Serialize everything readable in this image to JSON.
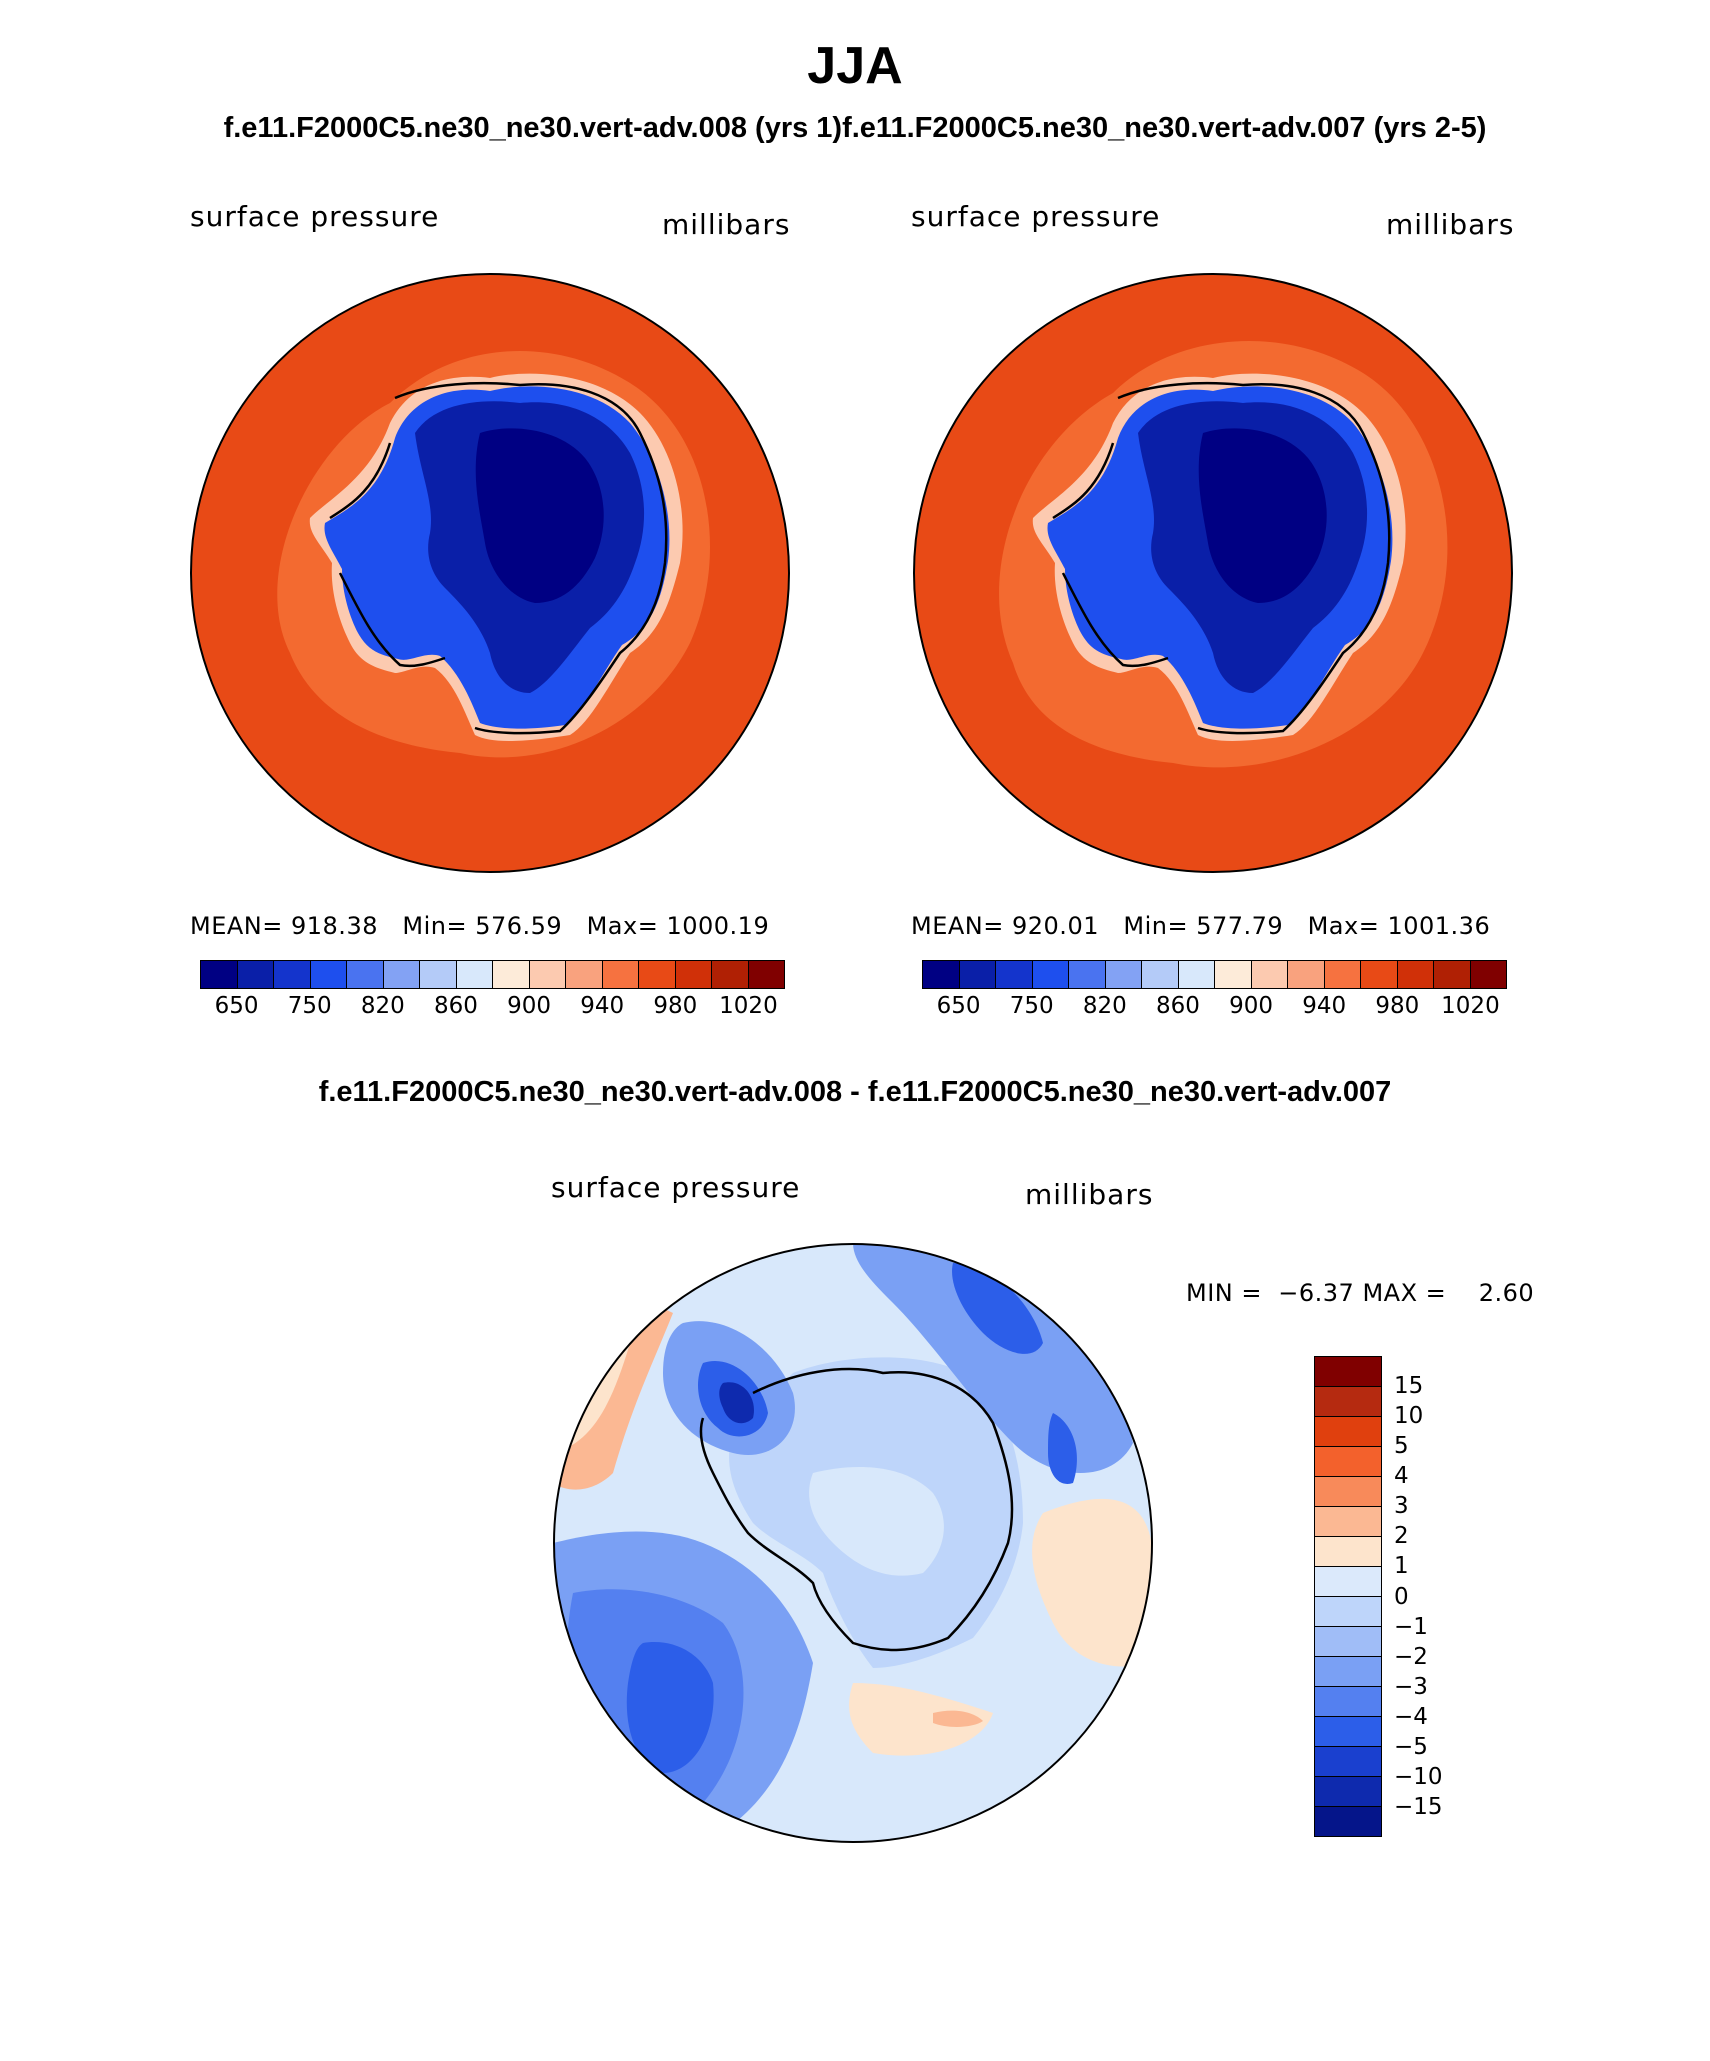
{
  "header": {
    "season": "JJA",
    "subtitle": "f.e11.F2000C5.ne30_ne30.vert-adv.008 (yrs 1)f.e11.F2000C5.ne30_ne30.vert-adv.007 (yrs 2-5)"
  },
  "panels": [
    {
      "variable": "surface pressure",
      "units": "millibars",
      "mean_label": "MEAN=",
      "mean": "918.38",
      "min_label": "Min=",
      "min": "576.59",
      "max_label": "Max=",
      "max": "1000.19"
    },
    {
      "variable": "surface pressure",
      "units": "millibars",
      "mean_label": "MEAN=",
      "mean": "920.01",
      "min_label": "Min=",
      "min": "577.79",
      "max_label": "Max=",
      "max": "1001.36"
    }
  ],
  "abs_colorbar": {
    "colors": [
      "#000083",
      "#0a1fa8",
      "#1434cc",
      "#1e4fee",
      "#4a73f0",
      "#83a2f4",
      "#b4cbf8",
      "#d8e8fb",
      "#fdebd9",
      "#fccab0",
      "#f9a27e",
      "#f67240",
      "#e84a16",
      "#d03008",
      "#b02004",
      "#800000"
    ],
    "labels": [
      "650",
      "750",
      "820",
      "860",
      "900",
      "940",
      "980",
      "1020"
    ]
  },
  "difference": {
    "title": "f.e11.F2000C5.ne30_ne30.vert-adv.008 - f.e11.F2000C5.ne30_ne30.vert-adv.007",
    "variable": "surface pressure",
    "units": "millibars",
    "min_label": "MIN =",
    "min": "−6.37",
    "max_label": "MAX =",
    "max": "2.60",
    "colorbar": {
      "colors": [
        "#800000",
        "#b52a10",
        "#e0400e",
        "#f3612c",
        "#f88a5a",
        "#fbb893",
        "#fde4cc",
        "#dbe9fb",
        "#bed5fa",
        "#a0bdf7",
        "#7aa0f4",
        "#5480f0",
        "#2c5ee9",
        "#1a40cf",
        "#0e2aae",
        "#05158a"
      ],
      "labels": [
        "15",
        "10",
        "5",
        "4",
        "3",
        "2",
        "1",
        "0",
        "−1",
        "−2",
        "−3",
        "−4",
        "−5",
        "−10",
        "−15"
      ]
    }
  }
}
